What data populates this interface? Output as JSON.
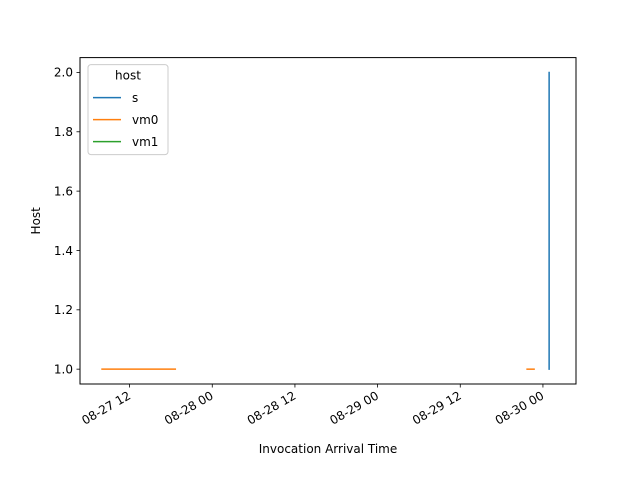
{
  "chart_data": {
    "type": "line",
    "title": "",
    "xlabel": "Invocation Arrival Time",
    "ylabel": "Host",
    "x_axis_type": "datetime",
    "xlim": [
      "2024-08-27T04:48",
      "2024-08-30T04:48"
    ],
    "ylim": [
      0.95,
      2.05
    ],
    "x_ticks": [
      {
        "value": "2024-08-27T12:00",
        "label": "08-27 12"
      },
      {
        "value": "2024-08-28T00:00",
        "label": "08-28 00"
      },
      {
        "value": "2024-08-28T12:00",
        "label": "08-28 12"
      },
      {
        "value": "2024-08-29T00:00",
        "label": "08-29 00"
      },
      {
        "value": "2024-08-29T12:00",
        "label": "08-29 12"
      },
      {
        "value": "2024-08-30T00:00",
        "label": "08-30 00"
      }
    ],
    "y_ticks": [
      {
        "value": 1.0,
        "label": "1.0"
      },
      {
        "value": 1.2,
        "label": "1.2"
      },
      {
        "value": 1.4,
        "label": "1.4"
      },
      {
        "value": 1.6,
        "label": "1.6"
      },
      {
        "value": 1.8,
        "label": "1.8"
      },
      {
        "value": 2.0,
        "label": "2.0"
      }
    ],
    "grid": false,
    "legend": {
      "title": "host",
      "position": "top-left"
    },
    "series": [
      {
        "name": "s",
        "color": "#1f77b4",
        "points": [
          {
            "x": "2024-08-30T00:54",
            "y": 1.0
          },
          {
            "x": "2024-08-30T00:54",
            "y": 2.0
          }
        ]
      },
      {
        "name": "vm0",
        "color": "#ff7f0e",
        "segments": [
          [
            {
              "x": "2024-08-27T08:00",
              "y": 1.0
            },
            {
              "x": "2024-08-27T18:38",
              "y": 1.0
            }
          ],
          [
            {
              "x": "2024-08-29T21:42",
              "y": 1.0
            },
            {
              "x": "2024-08-29T22:43",
              "y": 1.0
            }
          ]
        ]
      },
      {
        "name": "vm1",
        "color": "#2ca02c",
        "segments": []
      }
    ]
  }
}
